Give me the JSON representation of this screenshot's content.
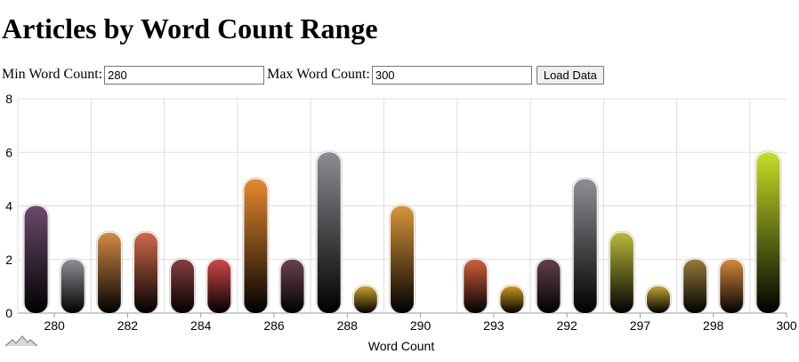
{
  "page": {
    "title": "Articles by Word Count Range"
  },
  "filters": {
    "min_label": "Min Word Count:",
    "min_value": "280",
    "max_label": "Max Word Count:",
    "max_value": "300",
    "load_button": "Load Data"
  },
  "chart_data": {
    "type": "bar",
    "xlabel": "Word Count",
    "ylabel": "",
    "ylim": [
      0,
      8
    ],
    "y_ticks": [
      0,
      2,
      4,
      6,
      8
    ],
    "grid": true,
    "x_tick_labels": [
      "280",
      "282",
      "284",
      "286",
      "288",
      "290",
      "293",
      "292",
      "297",
      "298",
      "300"
    ],
    "bars": [
      {
        "value": 4,
        "color": "#6b4a6b"
      },
      {
        "value": 2,
        "color": "#8e8e94"
      },
      {
        "value": 3,
        "color": "#d18a44"
      },
      {
        "value": 3,
        "color": "#d06a4a"
      },
      {
        "value": 2,
        "color": "#8a3e40"
      },
      {
        "value": 2,
        "color": "#d04848"
      },
      {
        "value": 5,
        "color": "#e68a2e"
      },
      {
        "value": 2,
        "color": "#6b4252"
      },
      {
        "value": 6,
        "color": "#8c8c92"
      },
      {
        "value": 1,
        "color": "#c8a02c"
      },
      {
        "value": 4,
        "color": "#d9953a"
      },
      {
        "value": null,
        "color": ""
      },
      {
        "value": 2,
        "color": "#d0603a"
      },
      {
        "value": 1,
        "color": "#c89a1e"
      },
      {
        "value": 2,
        "color": "#63404f"
      },
      {
        "value": 5,
        "color": "#8e8e94"
      },
      {
        "value": 3,
        "color": "#b8ba38"
      },
      {
        "value": 1,
        "color": "#c0a234"
      },
      {
        "value": 2,
        "color": "#957a3a"
      },
      {
        "value": 2,
        "color": "#d48a3a"
      },
      {
        "value": 6,
        "color": "#c6de28"
      }
    ]
  }
}
